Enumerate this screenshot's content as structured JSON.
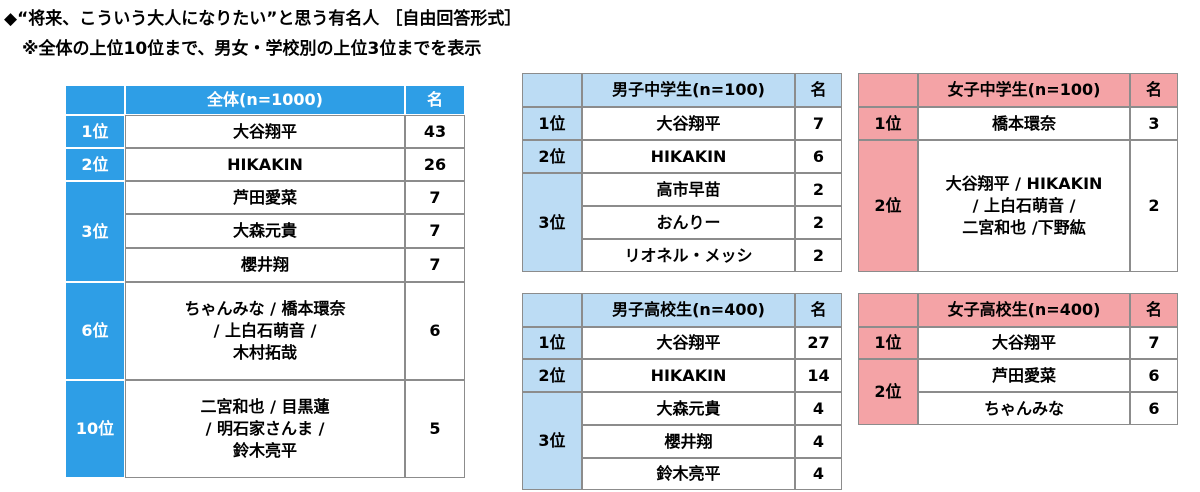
{
  "header": {
    "title": "◆“将来、こういう大人になりたい”と思う有名人 ［自由回答形式］",
    "subtitle": "※全体の上位10位まで、男女・学校別の上位3位までを表示"
  },
  "tables": [
    {
      "title": "全体(n=1000)",
      "unit": "名",
      "groups": [
        {
          "rank": "1位",
          "rows": [
            {
              "name": [
                "大谷翔平"
              ],
              "count": 43
            }
          ]
        },
        {
          "rank": "2位",
          "rows": [
            {
              "name": [
                "HIKAKIN"
              ],
              "count": 26
            }
          ]
        },
        {
          "rank": "3位",
          "rows": [
            {
              "name": [
                "芦田愛菜"
              ],
              "count": 7
            },
            {
              "name": [
                "大森元貴"
              ],
              "count": 7
            },
            {
              "name": [
                "櫻井翔"
              ],
              "count": 7
            }
          ]
        },
        {
          "rank": "6位",
          "rows": [
            {
              "name": [
                "ちゃんみな / 橋本環奈",
                "/ 上白石萌音 /",
                "木村拓哉"
              ],
              "count": 6
            }
          ]
        },
        {
          "rank": "10位",
          "rows": [
            {
              "name": [
                "二宮和也 / 目黒蓮",
                "/ 明石家さんま /",
                "鈴木亮平"
              ],
              "count": 5
            }
          ]
        }
      ]
    },
    {
      "title": "男子中学生(n=100)",
      "unit": "名",
      "groups": [
        {
          "rank": "1位",
          "rows": [
            {
              "name": [
                "大谷翔平"
              ],
              "count": 7
            }
          ]
        },
        {
          "rank": "2位",
          "rows": [
            {
              "name": [
                "HIKAKIN"
              ],
              "count": 6
            }
          ]
        },
        {
          "rank": "3位",
          "rows": [
            {
              "name": [
                "高市早苗"
              ],
              "count": 2
            },
            {
              "name": [
                "おんりー"
              ],
              "count": 2
            },
            {
              "name": [
                "リオネル・メッシ"
              ],
              "count": 2
            }
          ]
        }
      ]
    },
    {
      "title": "女子中学生(n=100)",
      "unit": "名",
      "groups": [
        {
          "rank": "1位",
          "rows": [
            {
              "name": [
                "橋本環奈"
              ],
              "count": 3
            }
          ]
        },
        {
          "rank": "2位",
          "rows": [
            {
              "name": [
                "大谷翔平 / HIKAKIN",
                "/ 上白石萌音 /",
                "二宮和也 /下野紘"
              ],
              "count": 2
            }
          ]
        }
      ]
    },
    {
      "title": "男子高校生(n=400)",
      "unit": "名",
      "groups": [
        {
          "rank": "1位",
          "rows": [
            {
              "name": [
                "大谷翔平"
              ],
              "count": 27
            }
          ]
        },
        {
          "rank": "2位",
          "rows": [
            {
              "name": [
                "HIKAKIN"
              ],
              "count": 14
            }
          ]
        },
        {
          "rank": "3位",
          "rows": [
            {
              "name": [
                "大森元貴"
              ],
              "count": 4
            },
            {
              "name": [
                "櫻井翔"
              ],
              "count": 4
            },
            {
              "name": [
                "鈴木亮平"
              ],
              "count": 4
            }
          ]
        }
      ]
    },
    {
      "title": "女子高校生(n=400)",
      "unit": "名",
      "groups": [
        {
          "rank": "1位",
          "rows": [
            {
              "name": [
                "大谷翔平"
              ],
              "count": 7
            }
          ]
        },
        {
          "rank": "2位",
          "rows": [
            {
              "name": [
                "芦田愛菜"
              ],
              "count": 6
            },
            {
              "name": [
                "ちゃんみな"
              ],
              "count": 6
            }
          ]
        }
      ]
    }
  ]
}
